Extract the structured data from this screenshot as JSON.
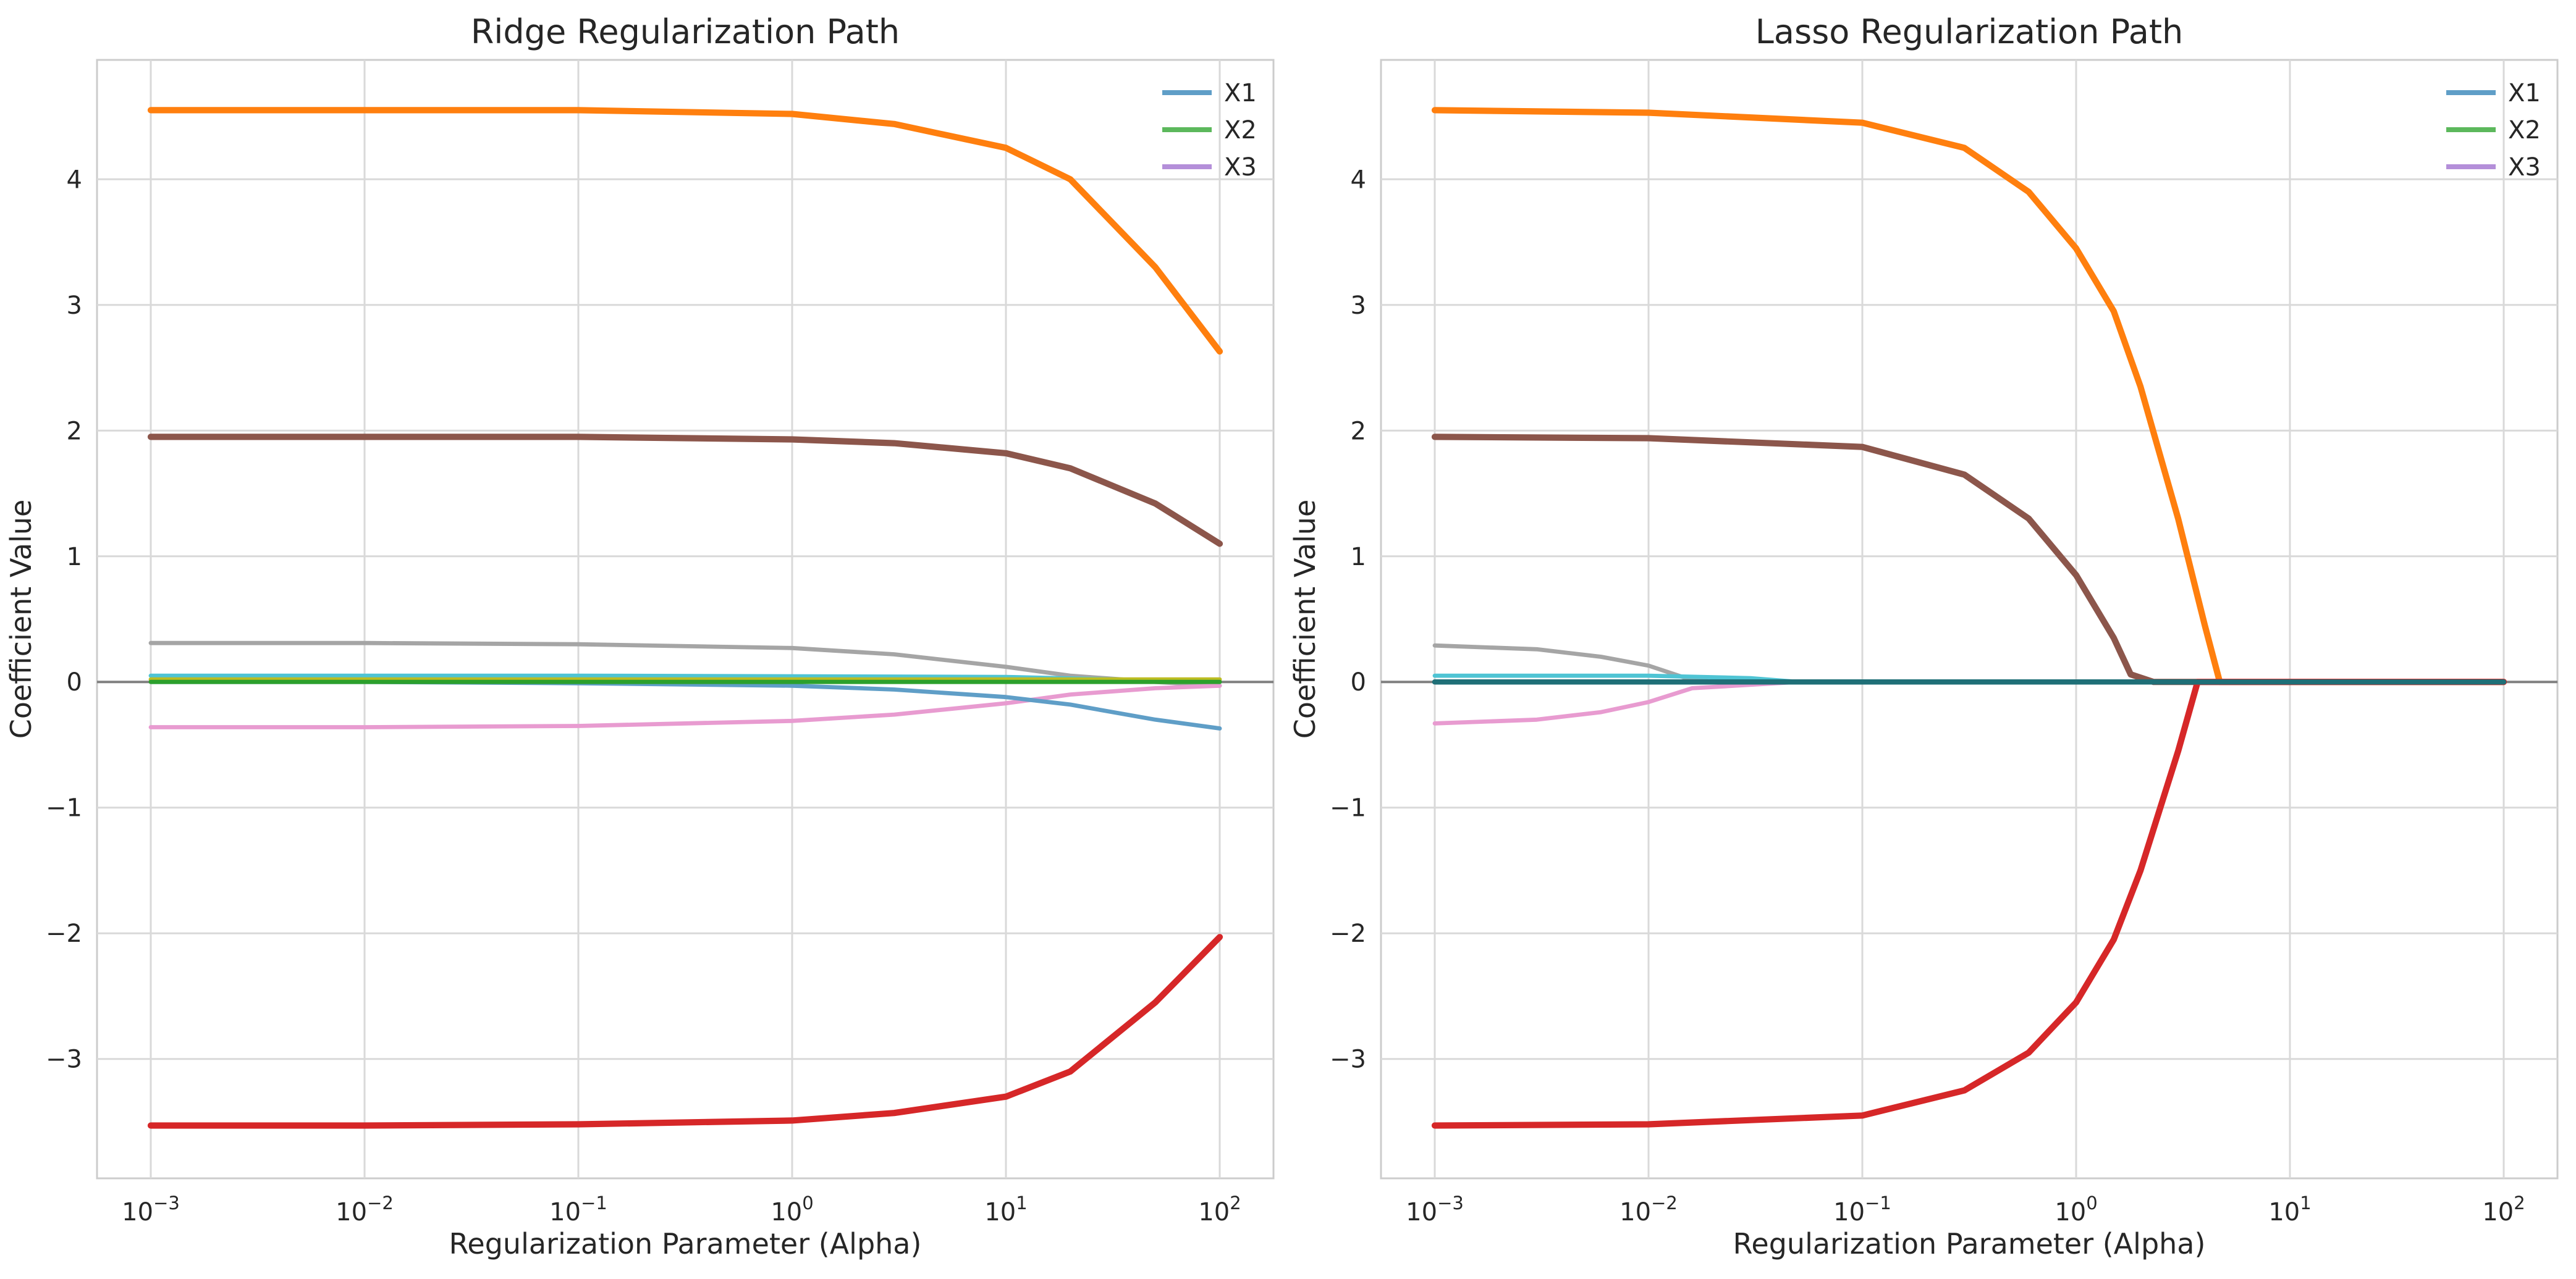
{
  "chart_data": [
    {
      "type": "line",
      "title": "Ridge Regularization Path",
      "xlabel": "Regularization Parameter (Alpha)",
      "ylabel": "Coefficient Value",
      "xscale": "log",
      "xlim": [
        0.001,
        100
      ],
      "ylim": [
        -3.95,
        4.95
      ],
      "x_ticks": [
        0.001,
        0.01,
        0.1,
        1,
        10,
        100
      ],
      "x_tick_labels": [
        [
          "10",
          "−3"
        ],
        [
          "10",
          "−2"
        ],
        [
          "10",
          "−1"
        ],
        [
          "10",
          "0"
        ],
        [
          "10",
          "1"
        ],
        [
          "10",
          "2"
        ]
      ],
      "y_ticks": [
        -3,
        -2,
        -1,
        0,
        1,
        2,
        3,
        4
      ],
      "y_tick_labels": [
        "−3",
        "−2",
        "−1",
        "0",
        "1",
        "2",
        "3",
        "4"
      ],
      "grid": true,
      "legend_position": "top-right",
      "legend": [
        "X1",
        "X2",
        "X3"
      ],
      "zero_line": 0,
      "series": [
        {
          "color": "#ff7f0e",
          "width": 6,
          "x": [
            0.001,
            0.01,
            0.1,
            1,
            3,
            10,
            20,
            50,
            100
          ],
          "y": [
            4.55,
            4.55,
            4.55,
            4.52,
            4.44,
            4.25,
            4.0,
            3.3,
            2.63
          ]
        },
        {
          "color": "#8c564b",
          "width": 6,
          "x": [
            0.001,
            0.01,
            0.1,
            1,
            3,
            10,
            20,
            50,
            100
          ],
          "y": [
            1.95,
            1.95,
            1.95,
            1.93,
            1.9,
            1.82,
            1.7,
            1.42,
            1.1
          ]
        },
        {
          "color": "#d62728",
          "width": 6,
          "x": [
            0.001,
            0.01,
            0.1,
            1,
            3,
            10,
            20,
            50,
            100
          ],
          "y": [
            -3.53,
            -3.53,
            -3.52,
            -3.49,
            -3.43,
            -3.3,
            -3.1,
            -2.55,
            -2.03
          ]
        },
        {
          "color": "#a5a5a5",
          "width": 4,
          "x": [
            0.001,
            0.01,
            0.1,
            1,
            3,
            10,
            20,
            50,
            100
          ],
          "y": [
            0.31,
            0.31,
            0.3,
            0.27,
            0.22,
            0.12,
            0.05,
            0.0,
            -0.03
          ]
        },
        {
          "color": "#e89bd0",
          "width": 4,
          "x": [
            0.001,
            0.01,
            0.1,
            1,
            3,
            10,
            20,
            50,
            100
          ],
          "y": [
            -0.36,
            -0.36,
            -0.35,
            -0.31,
            -0.26,
            -0.17,
            -0.1,
            -0.05,
            -0.03
          ]
        },
        {
          "color": "#5f9ec7",
          "width": 4,
          "x": [
            0.001,
            0.01,
            0.1,
            1,
            3,
            10,
            20,
            50,
            100
          ],
          "y": [
            0.0,
            0.0,
            -0.01,
            -0.03,
            -0.06,
            -0.12,
            -0.18,
            -0.3,
            -0.37
          ]
        },
        {
          "color": "#4fc4d4",
          "width": 4,
          "x": [
            0.001,
            0.1,
            10,
            100
          ],
          "y": [
            0.05,
            0.05,
            0.04,
            0.0
          ]
        },
        {
          "color": "#bcbd22",
          "width": 4,
          "x": [
            0.001,
            1,
            100
          ],
          "y": [
            0.02,
            0.02,
            0.02
          ]
        },
        {
          "color": "#2ca02c",
          "width": 4,
          "x": [
            0.001,
            100
          ],
          "y": [
            0.0,
            0.0
          ]
        }
      ]
    },
    {
      "type": "line",
      "title": "Lasso Regularization Path",
      "xlabel": "Regularization Parameter (Alpha)",
      "ylabel": "Coefficient Value",
      "xscale": "log",
      "xlim": [
        0.001,
        100
      ],
      "ylim": [
        -3.95,
        4.95
      ],
      "x_ticks": [
        0.001,
        0.01,
        0.1,
        1,
        10,
        100
      ],
      "x_tick_labels": [
        [
          "10",
          "−3"
        ],
        [
          "10",
          "−2"
        ],
        [
          "10",
          "−1"
        ],
        [
          "10",
          "0"
        ],
        [
          "10",
          "1"
        ],
        [
          "10",
          "2"
        ]
      ],
      "y_ticks": [
        -3,
        -2,
        -1,
        0,
        1,
        2,
        3,
        4
      ],
      "y_tick_labels": [
        "−3",
        "−2",
        "−1",
        "0",
        "1",
        "2",
        "3",
        "4"
      ],
      "grid": true,
      "legend_position": "top-right",
      "legend": [
        "X1",
        "X2",
        "X3"
      ],
      "zero_line": 0,
      "series": [
        {
          "color": "#ff7f0e",
          "width": 6,
          "x": [
            0.001,
            0.01,
            0.1,
            0.3,
            0.6,
            1,
            1.5,
            2,
            3,
            4,
            4.7,
            100
          ],
          "y": [
            4.55,
            4.53,
            4.45,
            4.25,
            3.9,
            3.45,
            2.95,
            2.35,
            1.3,
            0.45,
            0.0,
            0.0
          ]
        },
        {
          "color": "#8c564b",
          "width": 6,
          "x": [
            0.001,
            0.01,
            0.1,
            0.3,
            0.6,
            1,
            1.5,
            1.8,
            2.3,
            100
          ],
          "y": [
            1.95,
            1.94,
            1.87,
            1.65,
            1.3,
            0.85,
            0.35,
            0.06,
            0.0,
            0.0
          ]
        },
        {
          "color": "#d62728",
          "width": 6,
          "x": [
            0.001,
            0.01,
            0.1,
            0.3,
            0.6,
            1,
            1.5,
            2,
            3,
            3.7,
            100
          ],
          "y": [
            -3.53,
            -3.52,
            -3.45,
            -3.25,
            -2.95,
            -2.55,
            -2.05,
            -1.5,
            -0.55,
            0.0,
            0.0
          ]
        },
        {
          "color": "#a5a5a5",
          "width": 4,
          "x": [
            0.001,
            0.003,
            0.006,
            0.01,
            0.015,
            0.02,
            100
          ],
          "y": [
            0.29,
            0.26,
            0.2,
            0.13,
            0.03,
            0.0,
            0.0
          ]
        },
        {
          "color": "#e89bd0",
          "width": 4,
          "x": [
            0.001,
            0.003,
            0.006,
            0.01,
            0.016,
            0.05,
            100
          ],
          "y": [
            -0.33,
            -0.3,
            -0.24,
            -0.16,
            -0.05,
            0.0,
            0.0
          ]
        },
        {
          "color": "#4fc4d4",
          "width": 4,
          "x": [
            0.001,
            0.01,
            0.03,
            0.05,
            100
          ],
          "y": [
            0.05,
            0.05,
            0.03,
            0.0,
            0.0
          ]
        },
        {
          "color": "#1f6f77",
          "width": 5,
          "x": [
            0.001,
            100
          ],
          "y": [
            0.0,
            0.0
          ]
        }
      ]
    }
  ]
}
